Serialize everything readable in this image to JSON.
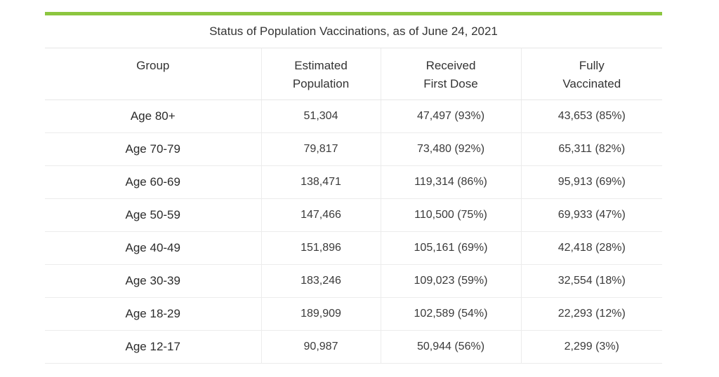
{
  "table": {
    "caption": "Status of Population Vaccinations, as of June 24, 2021",
    "accent_color": "#8cc63f",
    "headers": [
      {
        "line1": "Group",
        "line2": ""
      },
      {
        "line1": "Estimated",
        "line2": "Population"
      },
      {
        "line1": "Received",
        "line2": "First Dose"
      },
      {
        "line1": "Fully",
        "line2": "Vaccinated"
      }
    ],
    "rows": [
      {
        "group": "Age 80+",
        "population": "51,304",
        "first_dose": "47,497 (93%)",
        "fully": "43,653 (85%)"
      },
      {
        "group": "Age 70-79",
        "population": "79,817",
        "first_dose": "73,480 (92%)",
        "fully": "65,311 (82%)"
      },
      {
        "group": "Age 60-69",
        "population": "138,471",
        "first_dose": "119,314 (86%)",
        "fully": "95,913 (69%)"
      },
      {
        "group": "Age 50-59",
        "population": "147,466",
        "first_dose": "110,500 (75%)",
        "fully": "69,933 (47%)"
      },
      {
        "group": "Age 40-49",
        "population": "151,896",
        "first_dose": "105,161 (69%)",
        "fully": "42,418 (28%)"
      },
      {
        "group": "Age 30-39",
        "population": "183,246",
        "first_dose": "109,023 (59%)",
        "fully": "32,554 (18%)"
      },
      {
        "group": "Age 18-29",
        "population": "189,909",
        "first_dose": "102,589 (54%)",
        "fully": "22,293 (12%)"
      },
      {
        "group": "Age 12-17",
        "population": "90,987",
        "first_dose": "50,944 (56%)",
        "fully": "2,299 (3%)"
      }
    ]
  }
}
